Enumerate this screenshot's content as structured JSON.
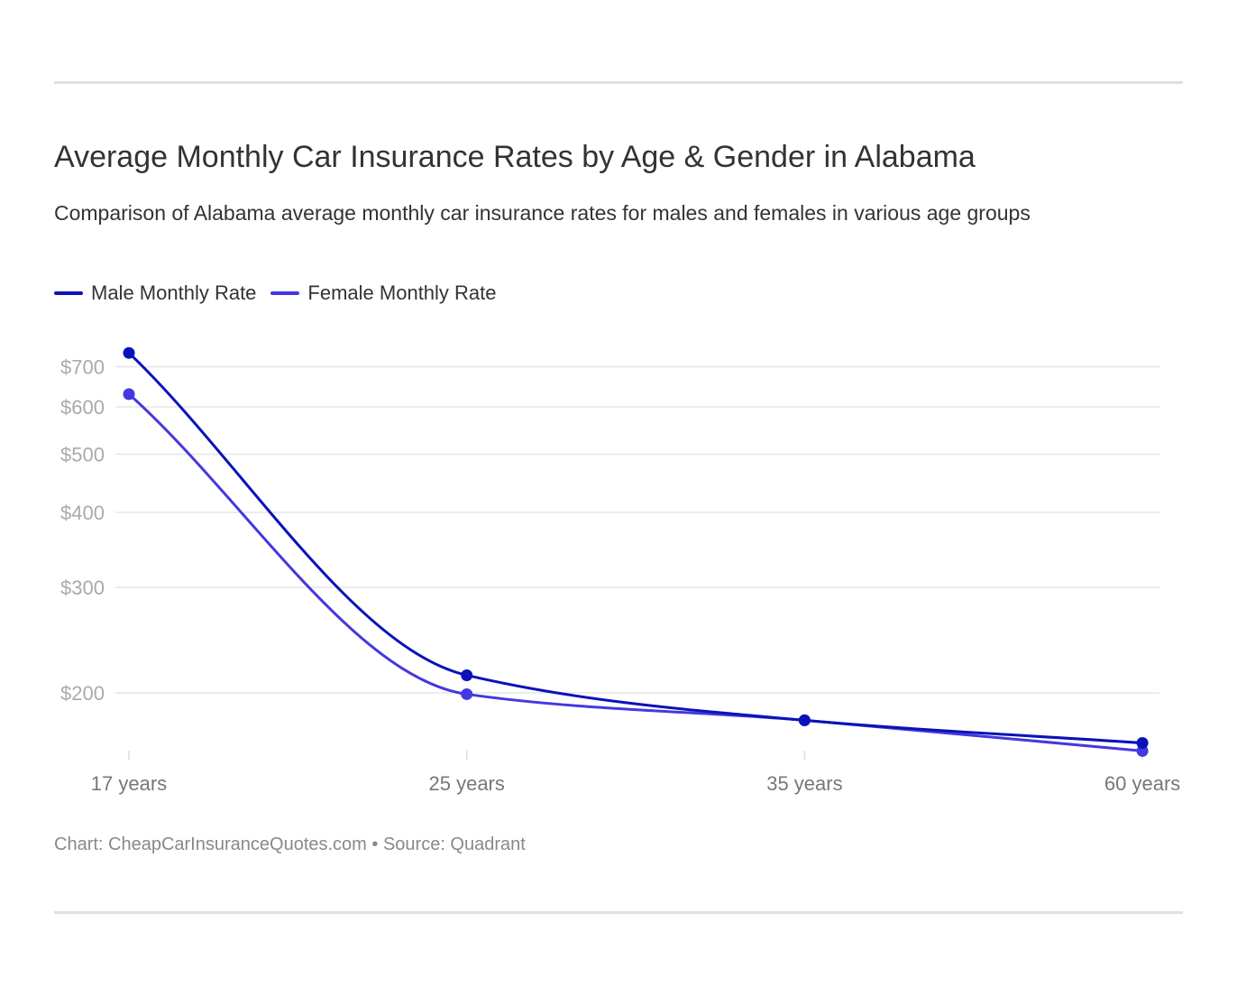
{
  "colors": {
    "male": "#0a12b8",
    "female": "#4438e0",
    "grid": "#e6e6e6"
  },
  "chart_data": {
    "type": "line",
    "title": "Average Monthly Car Insurance Rates by Age & Gender in Alabama",
    "subtitle": "Comparison of Alabama average monthly car insurance rates for males and females in various age groups",
    "categories": [
      "17 years",
      "25 years",
      "35 years",
      "60 years"
    ],
    "y_scale": "log",
    "y_ticks": [
      200,
      300,
      400,
      500,
      600,
      700
    ],
    "y_tick_labels": [
      "$200",
      "$300",
      "$400",
      "$500",
      "$600",
      "$700"
    ],
    "grid": true,
    "legend": "top-left",
    "series": [
      {
        "name": "Male Monthly Rate",
        "values": [
          738,
          214,
          180,
          165
        ]
      },
      {
        "name": "Female Monthly Rate",
        "values": [
          630,
          199,
          180,
          160
        ]
      }
    ],
    "footer": "Chart: CheapCarInsuranceQuotes.com • Source: Quadrant"
  }
}
